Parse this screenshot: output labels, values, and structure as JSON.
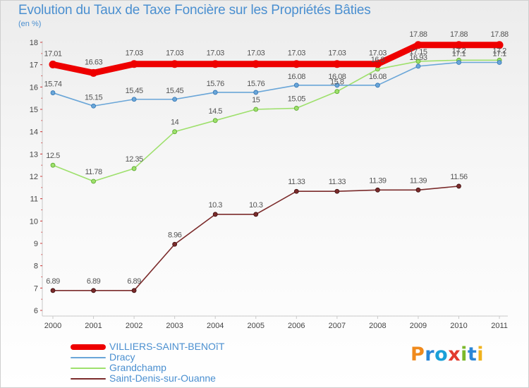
{
  "title": "Evolution du Taux de Taxe Foncière sur les Propriétés Bâties",
  "unit_label": "(en %)",
  "logo_letters": [
    "P",
    "r",
    "o",
    "x",
    "i",
    "t",
    "i"
  ],
  "chart_data": {
    "type": "line",
    "title": "Evolution du Taux de Taxe Foncière sur les Propriétés Bâties",
    "ylabel": "(en %)",
    "xlabel": "",
    "x": [
      "2000",
      "2001",
      "2002",
      "2003",
      "2004",
      "2005",
      "2006",
      "2007",
      "2008",
      "2009",
      "2010",
      "2011"
    ],
    "ylim": [
      6,
      18
    ],
    "yticks": [
      6,
      7,
      8,
      9,
      10,
      11,
      12,
      13,
      14,
      15,
      16,
      17,
      18
    ],
    "grid": false,
    "legend_position": "bottom-left",
    "series": [
      {
        "name": "VILLIERS-SAINT-BENOîT",
        "color": "#ee0000",
        "values": [
          17.01,
          16.63,
          17.03,
          17.03,
          17.03,
          17.03,
          17.03,
          17.03,
          17.03,
          17.88,
          17.88,
          17.88
        ],
        "labels": [
          "17.01",
          "16.63",
          "17.03",
          "17.03",
          "17.03",
          "17.03",
          "17.03",
          "17.03",
          "17.03",
          "17.88",
          "17.88",
          "17.88"
        ]
      },
      {
        "name": "Dracy",
        "color": "#6aa6d8",
        "values": [
          15.74,
          15.15,
          15.45,
          15.45,
          15.76,
          15.76,
          16.08,
          16.08,
          16.08,
          16.93,
          17.1,
          17.1
        ],
        "labels": [
          "15.74",
          "15.15",
          "15.45",
          "15.45",
          "15.76",
          "15.76",
          "16.08",
          "16.08",
          "16.08",
          "16.93",
          "17.1",
          "17.1"
        ]
      },
      {
        "name": "Grandchamp",
        "color": "#9ee06c",
        "values": [
          12.5,
          11.78,
          12.35,
          14,
          14.5,
          15,
          15.05,
          15.8,
          16.8,
          17.15,
          17.2,
          17.2
        ],
        "labels": [
          "12.5",
          "11.78",
          "12.35",
          "14",
          "14.5",
          "15",
          "15.05",
          "15.8",
          "16.8",
          "17.15",
          "17.2",
          "17.2"
        ]
      },
      {
        "name": "Saint-Denis-sur-Ouanne",
        "color": "#7b2b2b",
        "values": [
          6.89,
          6.89,
          6.89,
          8.96,
          10.3,
          10.3,
          11.33,
          11.33,
          11.39,
          11.39,
          11.56,
          null
        ],
        "labels": [
          "6.89",
          "6.89",
          "6.89",
          "8.96",
          "10.3",
          "10.3",
          "11.33",
          "11.33",
          "11.39",
          "11.39",
          "11.56",
          ""
        ]
      }
    ]
  }
}
